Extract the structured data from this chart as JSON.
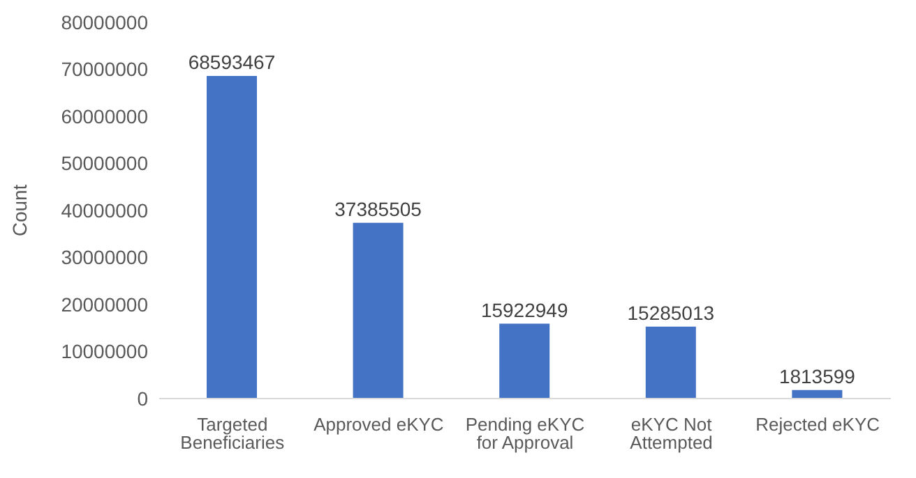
{
  "chart_data": {
    "type": "bar",
    "ylabel": "Count",
    "categories": [
      "Targeted Beneficiaries",
      "Approved eKYC",
      "Pending eKYC for Approval",
      "eKYC Not Attempted",
      "Rejected eKYC"
    ],
    "values": [
      68593467,
      37385505,
      15922949,
      15285013,
      1813599
    ],
    "color": "#4472c4",
    "data_labels": true,
    "grid": false,
    "legend": false,
    "ylim": [
      0,
      80000000
    ],
    "yticks": [
      0,
      10000000,
      20000000,
      30000000,
      40000000,
      50000000,
      60000000,
      70000000,
      80000000
    ]
  }
}
